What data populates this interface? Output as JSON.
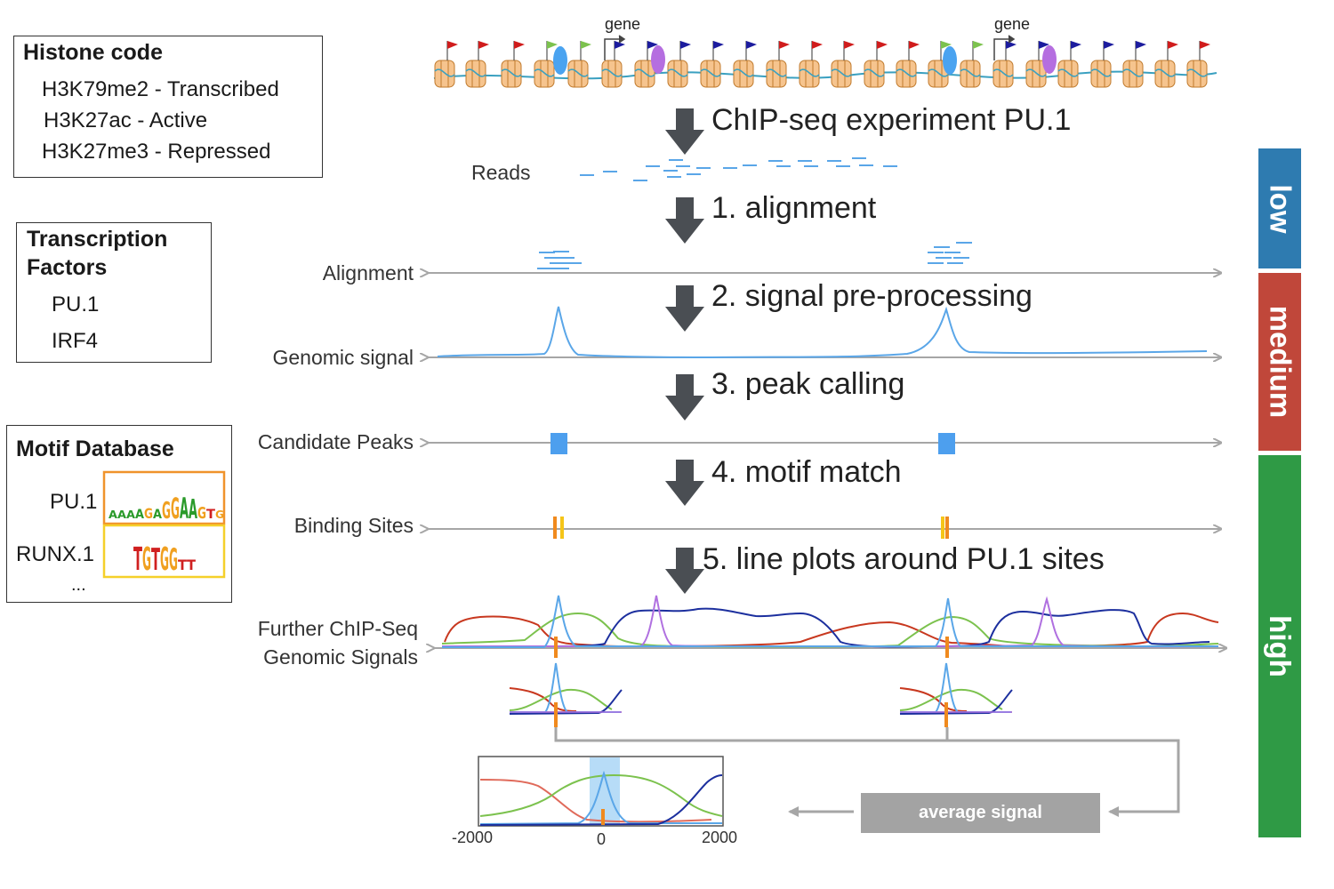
{
  "histone_box": {
    "title": "Histone code",
    "items": [
      "H3K79me2 - Transcribed",
      "H3K27ac - Active",
      "H3K27me3 - Repressed"
    ]
  },
  "tf_box": {
    "title_line1": "Transcription",
    "title_line2": "Factors",
    "items": [
      "PU.1",
      "IRF4"
    ]
  },
  "motif_box": {
    "title": "Motif Database",
    "motifs": [
      {
        "name": "PU.1",
        "logo": "AAAAGAGGAAGTG",
        "color": "#f0932b"
      },
      {
        "name": "RUNX.1",
        "logo": "TGTGGTT",
        "color": "#f5d02a"
      }
    ],
    "more": "..."
  },
  "gene_labels": [
    "gene",
    "gene"
  ],
  "steps": [
    "ChIP-seq experiment PU.1",
    "1. alignment",
    "2. signal pre-processing",
    "3. peak calling",
    "4. motif match",
    "5. line plots around  PU.1 sites"
  ],
  "tracks": {
    "reads": "Reads",
    "alignment": "Alignment",
    "genomic_signal": "Genomic signal",
    "candidate_peaks": "Candidate Peaks",
    "binding_sites": "Binding  Sites",
    "further_line1": "Further ChIP-Seq",
    "further_line2": "Genomic Signals"
  },
  "levels": [
    {
      "label": "low",
      "color": "#2e7bb0"
    },
    {
      "label": "medium",
      "color": "#c0473a"
    },
    {
      "label": "high",
      "color": "#2f9a45"
    }
  ],
  "average_signal": "average signal",
  "axis_ticks": [
    "-2000",
    "0",
    "2000"
  ],
  "colors": {
    "arrow": "#4a4e53",
    "track_line": "#a6a6a6",
    "signal_blue": "#5aa6e8",
    "peak_blue": "#4d9fee",
    "site_orange": "#f08a1e",
    "site_yellow": "#f5c518",
    "red": "#c8381f",
    "green": "#7cc24e",
    "navy": "#1c2f9e",
    "purple": "#b070e0",
    "highlight": "#b7dcf7"
  }
}
